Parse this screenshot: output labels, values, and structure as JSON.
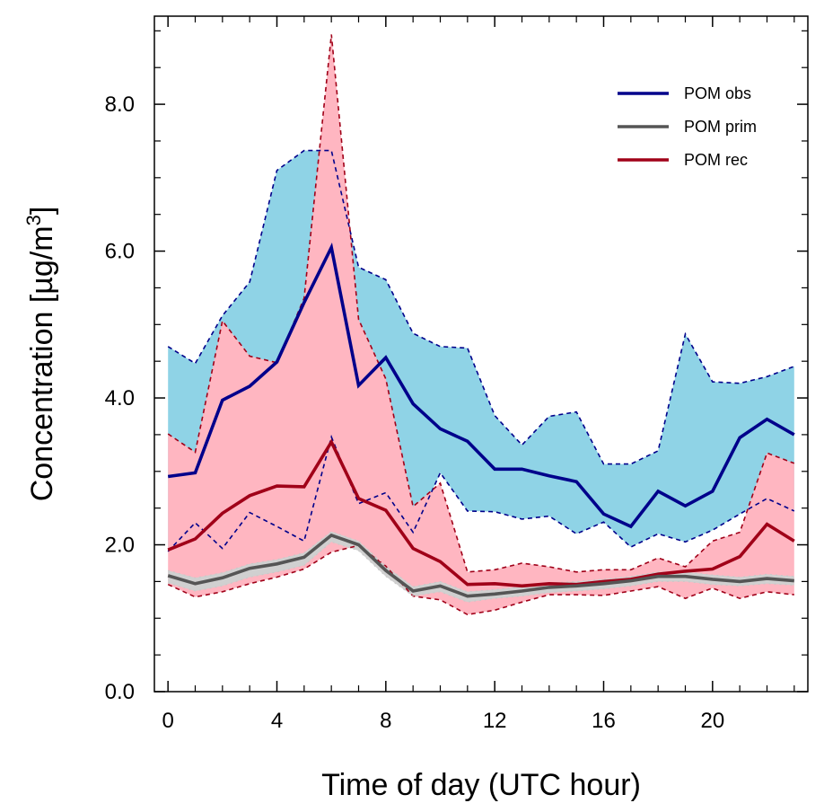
{
  "chart_data": {
    "type": "line",
    "xlabel": "Time of day (UTC hour)",
    "ylabel_main": "Concentration [µg/m",
    "ylabel_sup": "3",
    "ylabel_close": "]",
    "xlim": [
      -0.5,
      23.5
    ],
    "ylim": [
      0,
      9.2
    ],
    "x_ticks": [
      0,
      4,
      8,
      12,
      16,
      20
    ],
    "x_tick_labels": [
      "0",
      "4",
      "8",
      "12",
      "16",
      "20"
    ],
    "x_minor_ticks": [
      1,
      2,
      3,
      5,
      6,
      7,
      9,
      10,
      11,
      13,
      14,
      15,
      17,
      18,
      19,
      21,
      22,
      23
    ],
    "y_ticks": [
      0,
      2,
      4,
      6,
      8
    ],
    "y_tick_labels": [
      "0.0",
      "2.0",
      "4.0",
      "6.0",
      "8.0"
    ],
    "y_minor_ticks": [
      0.5,
      1.0,
      1.5,
      2.5,
      3.0,
      3.5,
      4.5,
      5.0,
      5.5,
      6.5,
      7.0,
      7.5,
      8.5,
      9.0
    ],
    "x": [
      0,
      1,
      2,
      3,
      4,
      5,
      6,
      7,
      8,
      9,
      10,
      11,
      12,
      13,
      14,
      15,
      16,
      17,
      18,
      19,
      20,
      21,
      22,
      23
    ],
    "legend_position": "top-right",
    "series": [
      {
        "name": "POM obs",
        "color": "#00008b",
        "band_color": "#8fd3e6",
        "values": [
          2.93,
          2.98,
          3.97,
          4.16,
          4.49,
          5.3,
          6.05,
          4.17,
          4.55,
          3.92,
          3.58,
          3.41,
          3.03,
          3.03,
          2.94,
          2.86,
          2.42,
          2.25,
          2.73,
          2.53,
          2.73,
          3.46,
          3.71,
          3.5
        ],
        "upper": [
          4.7,
          4.47,
          5.12,
          5.58,
          7.1,
          7.37,
          7.37,
          5.78,
          5.61,
          4.88,
          4.7,
          4.68,
          3.76,
          3.36,
          3.75,
          3.81,
          3.1,
          3.1,
          3.28,
          4.87,
          4.22,
          4.2,
          4.29,
          4.43
        ],
        "lower": [
          1.91,
          2.3,
          1.95,
          2.44,
          2.25,
          2.05,
          3.47,
          2.56,
          2.71,
          2.17,
          2.98,
          2.46,
          2.45,
          2.35,
          2.39,
          2.15,
          2.31,
          1.97,
          2.15,
          2.04,
          2.2,
          2.42,
          2.63,
          2.46
        ]
      },
      {
        "name": "POM prim",
        "color": "#555555",
        "band_color": "#d0d0d0",
        "values": [
          1.58,
          1.47,
          1.55,
          1.68,
          1.74,
          1.83,
          2.13,
          2.0,
          1.65,
          1.37,
          1.44,
          1.3,
          1.33,
          1.37,
          1.42,
          1.44,
          1.47,
          1.51,
          1.57,
          1.57,
          1.53,
          1.5,
          1.54,
          1.51
        ],
        "upper": [
          1.65,
          1.55,
          1.62,
          1.74,
          1.8,
          1.89,
          2.18,
          2.05,
          1.71,
          1.43,
          1.5,
          1.36,
          1.39,
          1.43,
          1.48,
          1.5,
          1.53,
          1.57,
          1.63,
          1.63,
          1.59,
          1.56,
          1.6,
          1.57
        ],
        "lower": [
          1.48,
          1.37,
          1.44,
          1.56,
          1.63,
          1.72,
          2.04,
          1.92,
          1.57,
          1.3,
          1.36,
          1.22,
          1.27,
          1.3,
          1.35,
          1.37,
          1.4,
          1.44,
          1.5,
          1.5,
          1.46,
          1.44,
          1.47,
          1.45
        ]
      },
      {
        "name": "POM rec",
        "color": "#a00018",
        "band_color": "#ffb6c1",
        "values": [
          1.93,
          2.08,
          2.43,
          2.67,
          2.8,
          2.79,
          3.4,
          2.63,
          2.47,
          1.95,
          1.77,
          1.46,
          1.47,
          1.44,
          1.47,
          1.46,
          1.5,
          1.53,
          1.6,
          1.64,
          1.67,
          1.84,
          2.28,
          2.05
        ],
        "upper": [
          3.51,
          3.26,
          5.05,
          4.57,
          4.48,
          5.36,
          8.95,
          5.07,
          4.26,
          2.52,
          2.84,
          1.63,
          1.66,
          1.75,
          1.7,
          1.63,
          1.66,
          1.66,
          1.82,
          1.7,
          2.05,
          2.17,
          3.25,
          3.11
        ],
        "lower": [
          1.46,
          1.29,
          1.36,
          1.47,
          1.56,
          1.67,
          1.9,
          1.99,
          1.71,
          1.3,
          1.25,
          1.05,
          1.11,
          1.22,
          1.32,
          1.32,
          1.31,
          1.37,
          1.43,
          1.27,
          1.41,
          1.27,
          1.36,
          1.32
        ]
      }
    ]
  }
}
